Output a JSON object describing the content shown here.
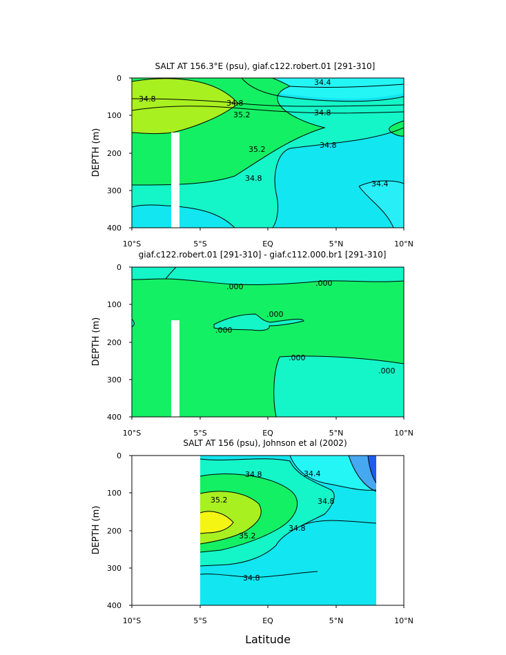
{
  "chart_data": [
    {
      "type": "contour",
      "title": "SALT AT 156.3°E (psu), giaf.c122.robert.01 [291-310]",
      "xlabel": "",
      "ylabel": "DEPTH (m)",
      "xlim": [
        -10,
        10
      ],
      "ylim": [
        400,
        0
      ],
      "x_ticks": [
        "10°S",
        "5°S",
        "EQ",
        "5°N",
        "10°N"
      ],
      "y_ticks": [
        "0",
        "100",
        "200",
        "300",
        "400"
      ],
      "contour_labels": [
        "34.8",
        "34.8",
        "34.4",
        "35.2",
        "34.8",
        "35.2",
        "34.8",
        "34.8",
        "34.4"
      ],
      "masked_column": {
        "lon": [
          -3.3,
          -2.8
        ],
        "depth_top": 145
      }
    },
    {
      "type": "contour",
      "title": "giaf.c122.robert.01 [291-310] - giaf.c112.000.br1 [291-310]",
      "xlabel": "",
      "ylabel": "DEPTH (m)",
      "xlim": [
        -10,
        10
      ],
      "ylim": [
        400,
        0
      ],
      "x_ticks": [
        "10°S",
        "5°S",
        "EQ",
        "5°N",
        "10°N"
      ],
      "y_ticks": [
        "0",
        "100",
        "200",
        "300",
        "400"
      ],
      "contour_labels": [
        ".000",
        ".000",
        ".000",
        ".000",
        ".000",
        ".000"
      ],
      "masked_column": {
        "lon": [
          -3.3,
          -2.8
        ],
        "depth_top": 145
      }
    },
    {
      "type": "contour",
      "title": "SALT AT 156 (psu), Johnson et al (2002)",
      "xlabel": "Latitude",
      "ylabel": "DEPTH (m)",
      "xlim": [
        -10,
        10
      ],
      "ylim": [
        400,
        0
      ],
      "x_ticks": [
        "10°S",
        "5°S",
        "EQ",
        "5°N",
        "10°N"
      ],
      "y_ticks": [
        "0",
        "100",
        "200",
        "300",
        "400"
      ],
      "contour_labels": [
        "34.8",
        "34.4",
        "35.2",
        "34.8",
        "35.2",
        "34.8",
        "34.8"
      ],
      "data_extent": {
        "lon": [
          -5,
          8
        ]
      }
    }
  ],
  "colors": {
    "cyan_light": "#24f5f5",
    "cyan": "#12e6f0",
    "aqua_green": "#14f5c8",
    "green": "#14f064",
    "lime": "#a8f020",
    "yellow": "#f5f514",
    "deep_blue": "#1e5cf0"
  }
}
